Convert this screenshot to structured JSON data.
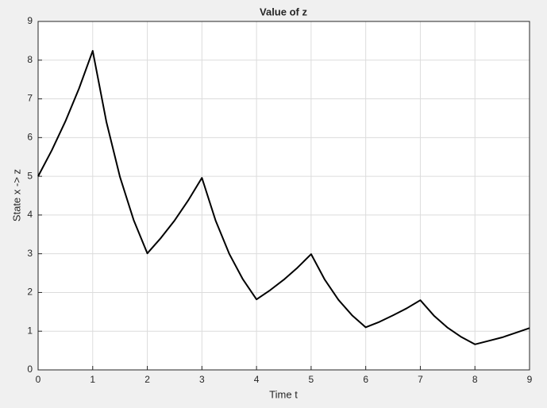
{
  "chart_data": {
    "type": "line",
    "title": "Value of z",
    "xlabel": "Time t",
    "ylabel": "State x -> z",
    "x": [
      0,
      0.25,
      0.5,
      0.75,
      1,
      1.25,
      1.5,
      1.75,
      2,
      2.25,
      2.5,
      2.75,
      3,
      3.25,
      3.5,
      3.75,
      4,
      4.25,
      4.5,
      4.75,
      5,
      5.25,
      5.5,
      5.75,
      6,
      6.25,
      6.5,
      6.75,
      7,
      7.25,
      7.5,
      7.75,
      8,
      8.25,
      8.5,
      8.75,
      9
    ],
    "series": [
      {
        "color": "#000000",
        "values": [
          5,
          5.67,
          6.42,
          7.27,
          8.24,
          6.41,
          4.98,
          3.87,
          3.01,
          3.41,
          3.86,
          4.38,
          4.96,
          3.86,
          3.0,
          2.34,
          1.82,
          2.06,
          2.33,
          2.64,
          2.99,
          2.33,
          1.81,
          1.41,
          1.1,
          1.24,
          1.41,
          1.59,
          1.8,
          1.4,
          1.09,
          0.85,
          0.66,
          0.75,
          0.84,
          0.96,
          1.08
        ]
      }
    ],
    "xlim": [
      0,
      9
    ],
    "ylim": [
      0,
      9
    ],
    "xticks": [
      0,
      1,
      2,
      3,
      4,
      5,
      6,
      7,
      8,
      9
    ],
    "yticks": [
      0,
      1,
      2,
      3,
      4,
      5,
      6,
      7,
      8,
      9
    ],
    "grid": true
  }
}
